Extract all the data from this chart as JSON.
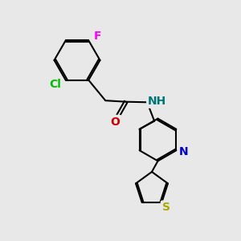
{
  "background_color": "#e8e8e8",
  "bond_color": "#000000",
  "bond_width": 1.5,
  "atoms": {
    "F": {
      "color": "#ff00ff",
      "fontsize": 10
    },
    "Cl": {
      "color": "#00bb00",
      "fontsize": 10
    },
    "O": {
      "color": "#cc0000",
      "fontsize": 10
    },
    "N": {
      "color": "#0000cc",
      "fontsize": 10
    },
    "NH": {
      "color": "#007777",
      "fontsize": 10
    },
    "S": {
      "color": "#aaaa00",
      "fontsize": 10
    }
  },
  "figsize": [
    3.0,
    3.0
  ],
  "dpi": 100,
  "xlim": [
    0,
    10
  ],
  "ylim": [
    0,
    10
  ]
}
